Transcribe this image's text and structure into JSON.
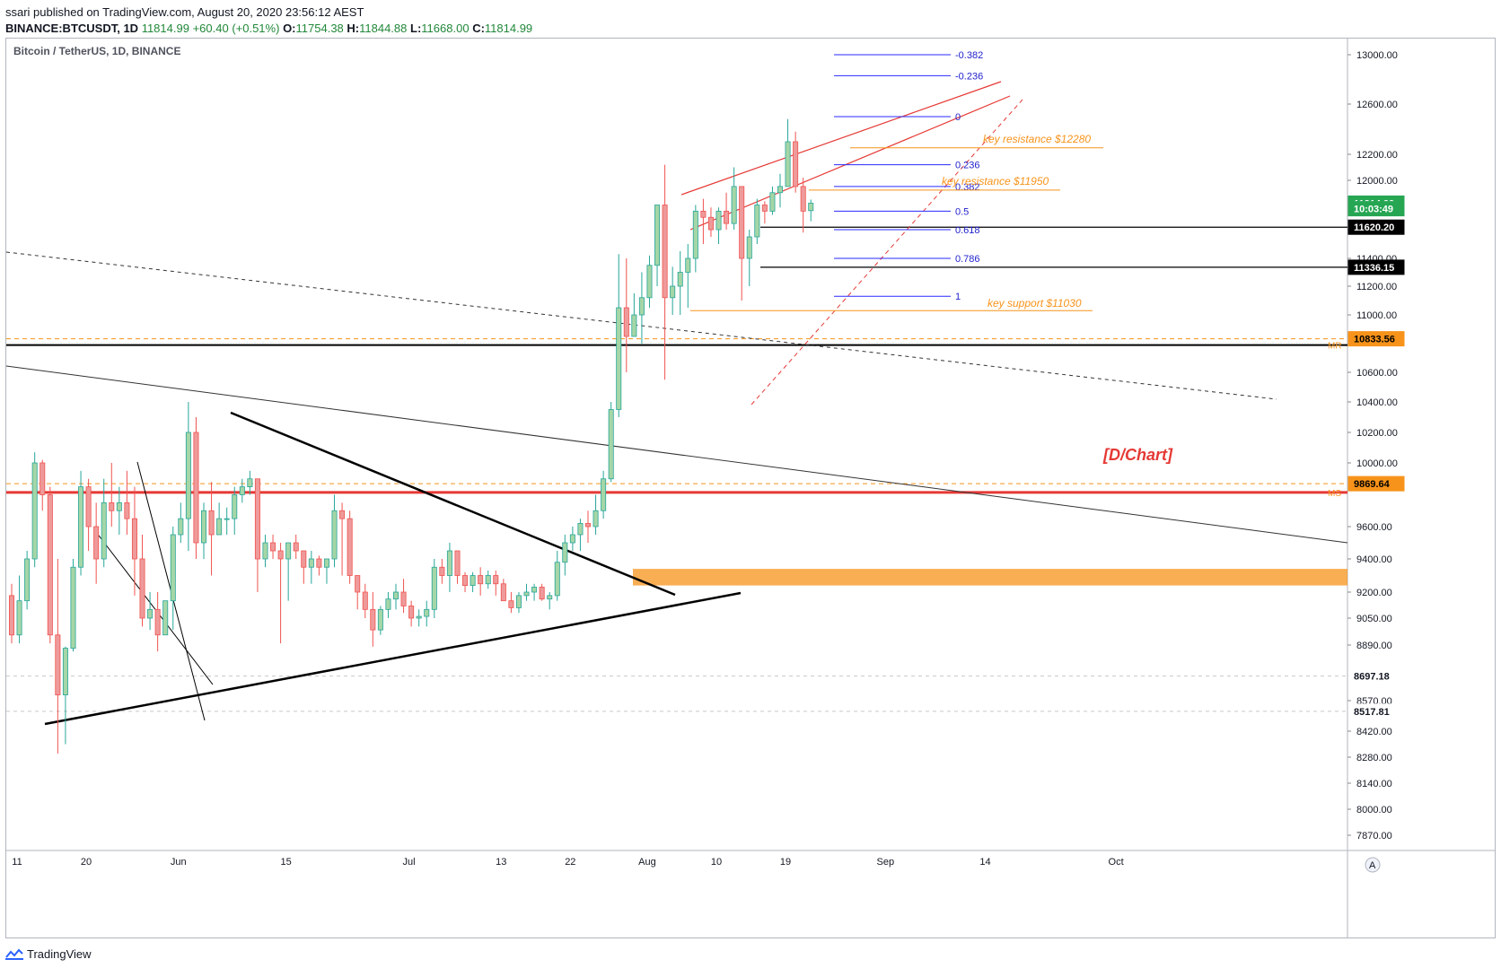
{
  "header": {
    "published_line": "ssari published on TradingView.com, August 20, 2020 23:56:12 AEST",
    "symbol_line": "BINANCE:BTCUSDT, 1D",
    "price": "11814.99",
    "change": "+60.40 (+0.51%)",
    "o_label": "O:",
    "o_value": "11754.38",
    "h_label": "H:",
    "h_value": "11844.88",
    "l_label": "L:",
    "l_value": "11668.00",
    "c_label": "C:",
    "c_value": "11814.99"
  },
  "footer": {
    "brand": "TradingView",
    "scale_mode": "A"
  },
  "colors": {
    "up": "#a5d6a7",
    "down": "#ef9a9a",
    "up_edge": "#26a69a",
    "down_edge": "#ef5350",
    "annotation": "#f7931a",
    "fib": "#2a2aff",
    "channel": "#e53935"
  },
  "chart_data": {
    "type": "candlestick",
    "title": "Bitcoin / TetherUS, 1D, BINANCE",
    "watermark": "[D/Chart]",
    "y_ticks": [
      13000,
      12600,
      12200,
      12000,
      11600,
      11400,
      11200,
      11000,
      10600,
      10400,
      10200,
      10000,
      9600,
      9400,
      9200,
      9050,
      8890,
      8700,
      8570,
      8420,
      8280,
      8140,
      8000,
      7870
    ],
    "y_tick_labels": [
      "13000.00",
      "12600.00",
      "12200.00",
      "12000.00",
      "11600.00",
      "11400.00",
      "11200.00",
      "11000.00",
      "10600.00",
      "10400.00",
      "10200.00",
      "10000.00",
      "9600.00",
      "9400.00",
      "9200.00",
      "9050.00",
      "8890.00",
      "8700.00",
      "8570.00",
      "8420.00",
      "8280.00",
      "8140.00",
      "8000.00",
      "7870.00"
    ],
    "x_tick_labels": [
      "11",
      "20",
      "Jun",
      "15",
      "Jul",
      "13",
      "22",
      "Aug",
      "10",
      "19",
      "Sep",
      "14",
      "Oct"
    ],
    "x_tick_bars": [
      0,
      9,
      21,
      35,
      51,
      63,
      72,
      82,
      91,
      100,
      113,
      126,
      143
    ],
    "price_labels": [
      {
        "value": 11814.99,
        "text": "11814.99",
        "bg": "#26a653",
        "fg": "#ffffff"
      },
      {
        "value": 11770,
        "text": "10:03:49",
        "bg": "#26a653",
        "fg": "#ffffff"
      },
      {
        "value": 11620.2,
        "text": "11620.20",
        "bg": "#000000",
        "fg": "#ffffff"
      },
      {
        "value": 11336.15,
        "text": "11336.15",
        "bg": "#000000",
        "fg": "#ffffff"
      },
      {
        "value": 10833.56,
        "text": "10833.56",
        "bg": "#f7931a",
        "fg": "#000000"
      },
      {
        "value": 9869.64,
        "text": "9869.64",
        "bg": "#f7931a",
        "fg": "#000000"
      },
      {
        "value": 8697.18,
        "text": "8697.18",
        "bg": "#ffffff",
        "fg": "#131722"
      },
      {
        "value": 8517.81,
        "text": "8517.81",
        "bg": "#ffffff",
        "fg": "#131722"
      }
    ],
    "side_tags": [
      {
        "value": 10790,
        "text": "MR"
      },
      {
        "value": 9815,
        "text": "MS"
      }
    ],
    "fib_levels": [
      {
        "ratio": "-0.382",
        "value": 13000
      },
      {
        "ratio": "-0.236",
        "value": 12830
      },
      {
        "ratio": "0",
        "value": 12500
      },
      {
        "ratio": "0.236",
        "value": 12120
      },
      {
        "ratio": "0.382",
        "value": 11950
      },
      {
        "ratio": "0.5",
        "value": 11750
      },
      {
        "ratio": "0.618",
        "value": 11600
      },
      {
        "ratio": "0.786",
        "value": 11400
      },
      {
        "ratio": "1",
        "value": 11130
      }
    ],
    "annotations": [
      {
        "text": "key resistance $12280",
        "value": 12280
      },
      {
        "text": "key resistance $11950",
        "value": 11950
      },
      {
        "text": "key support $11030",
        "value": 11030
      }
    ],
    "demand_zone": [
      9240,
      9340
    ],
    "horizontal_lines": [
      {
        "value": 11620.2,
        "style": "solid-black"
      },
      {
        "value": 11336.15,
        "style": "solid-black"
      },
      {
        "value": 10790,
        "style": "solid-black"
      },
      {
        "value": 10833.56,
        "style": "dashed-orange"
      },
      {
        "value": 9815,
        "style": "solid-red"
      },
      {
        "value": 9869.64,
        "style": "dashed-orange"
      },
      {
        "value": 8697.18,
        "style": "dashed-grey"
      },
      {
        "value": 8517.81,
        "style": "dashed-grey"
      }
    ],
    "candles": [
      [
        9180,
        9250,
        8900,
        8950
      ],
      [
        8950,
        9300,
        8900,
        9150
      ],
      [
        9150,
        9450,
        9100,
        9400
      ],
      [
        9400,
        10070,
        9350,
        10000
      ],
      [
        10000,
        10020,
        9700,
        9800
      ],
      [
        9800,
        9850,
        8900,
        8950
      ],
      [
        8950,
        9400,
        8300,
        8600
      ],
      [
        8600,
        8880,
        8350,
        8870
      ],
      [
        8870,
        9400,
        8850,
        9350
      ],
      [
        9350,
        9950,
        9300,
        9850
      ],
      [
        9850,
        9900,
        9450,
        9600
      ],
      [
        9600,
        9750,
        9250,
        9400
      ],
      [
        9400,
        9900,
        9350,
        9750
      ],
      [
        9750,
        10000,
        9600,
        9700
      ],
      [
        9700,
        9850,
        9550,
        9750
      ],
      [
        9750,
        9950,
        9550,
        9650
      ],
      [
        9650,
        9850,
        9180,
        9400
      ],
      [
        9400,
        9550,
        9000,
        9050
      ],
      [
        9050,
        9200,
        8980,
        9100
      ],
      [
        9100,
        9200,
        8850,
        8950
      ],
      [
        8950,
        9150,
        8950,
        9150
      ],
      [
        9150,
        9600,
        8980,
        9550
      ],
      [
        9550,
        9750,
        9500,
        9650
      ],
      [
        9650,
        10400,
        9450,
        10200
      ],
      [
        10200,
        10300,
        9400,
        9500
      ],
      [
        9500,
        9750,
        9400,
        9700
      ],
      [
        9700,
        9880,
        9300,
        9550
      ],
      [
        9550,
        9750,
        9550,
        9650
      ],
      [
        9650,
        9720,
        9550,
        9650
      ],
      [
        9650,
        9850,
        9550,
        9800
      ],
      [
        9800,
        9900,
        9750,
        9850
      ],
      [
        9850,
        9950,
        9800,
        9900
      ],
      [
        9900,
        9900,
        9200,
        9400
      ],
      [
        9400,
        9550,
        9350,
        9500
      ],
      [
        9500,
        9550,
        9400,
        9450
      ],
      [
        9450,
        9500,
        8900,
        9400
      ],
      [
        9400,
        9500,
        9150,
        9500
      ],
      [
        9500,
        9550,
        9400,
        9450
      ],
      [
        9450,
        9450,
        9250,
        9350
      ],
      [
        9350,
        9450,
        9250,
        9400
      ],
      [
        9400,
        9420,
        9300,
        9350
      ],
      [
        9350,
        9400,
        9250,
        9400
      ],
      [
        9400,
        9800,
        9350,
        9700
      ],
      [
        9700,
        9750,
        9300,
        9650
      ],
      [
        9650,
        9700,
        9250,
        9300
      ],
      [
        9300,
        9300,
        9100,
        9200
      ],
      [
        9200,
        9250,
        9050,
        9100
      ],
      [
        9100,
        9200,
        8880,
        8980
      ],
      [
        8980,
        9120,
        8950,
        9100
      ],
      [
        9100,
        9200,
        9050,
        9160
      ],
      [
        9160,
        9250,
        9100,
        9200
      ],
      [
        9200,
        9280,
        9080,
        9120
      ],
      [
        9120,
        9150,
        9000,
        9050
      ],
      [
        9050,
        9100,
        9000,
        9060
      ],
      [
        9060,
        9150,
        9000,
        9100
      ],
      [
        9100,
        9400,
        9050,
        9350
      ],
      [
        9350,
        9400,
        9250,
        9300
      ],
      [
        9300,
        9500,
        9200,
        9450
      ],
      [
        9450,
        9450,
        9250,
        9300
      ],
      [
        9300,
        9320,
        9200,
        9240
      ],
      [
        9240,
        9320,
        9200,
        9300
      ],
      [
        9300,
        9350,
        9180,
        9250
      ],
      [
        9250,
        9330,
        9220,
        9300
      ],
      [
        9300,
        9330,
        9180,
        9250
      ],
      [
        9250,
        9280,
        9150,
        9150
      ],
      [
        9150,
        9200,
        9080,
        9110
      ],
      [
        9110,
        9200,
        9080,
        9180
      ],
      [
        9180,
        9250,
        9150,
        9200
      ],
      [
        9200,
        9250,
        9150,
        9230
      ],
      [
        9230,
        9250,
        9150,
        9160
      ],
      [
        9160,
        9200,
        9100,
        9180
      ],
      [
        9180,
        9450,
        9150,
        9380
      ],
      [
        9380,
        9550,
        9300,
        9500
      ],
      [
        9500,
        9600,
        9450,
        9550
      ],
      [
        9550,
        9650,
        9450,
        9620
      ],
      [
        9620,
        9700,
        9500,
        9600
      ],
      [
        9600,
        9800,
        9550,
        9700
      ],
      [
        9700,
        9950,
        9650,
        9900
      ],
      [
        9900,
        10400,
        9880,
        10350
      ],
      [
        10350,
        11430,
        10300,
        11050
      ],
      [
        11050,
        11400,
        10600,
        10850
      ],
      [
        10850,
        11150,
        10850,
        11000
      ],
      [
        11000,
        11300,
        10800,
        11120
      ],
      [
        11120,
        11420,
        11050,
        11350
      ],
      [
        11350,
        11780,
        11200,
        11800
      ],
      [
        11800,
        12120,
        10550,
        11120
      ],
      [
        11120,
        11340,
        11000,
        11200
      ],
      [
        11200,
        11450,
        11000,
        11300
      ],
      [
        11300,
        11500,
        11050,
        11400
      ],
      [
        11400,
        11800,
        11300,
        11750
      ],
      [
        11750,
        11850,
        11500,
        11700
      ],
      [
        11700,
        11780,
        11550,
        11600
      ],
      [
        11600,
        11780,
        11500,
        11750
      ],
      [
        11750,
        11900,
        11600,
        11650
      ],
      [
        11650,
        12100,
        11600,
        11950
      ],
      [
        11950,
        11950,
        11100,
        11400
      ],
      [
        11400,
        11600,
        11200,
        11550
      ],
      [
        11550,
        11850,
        11500,
        11800
      ],
      [
        11800,
        11830,
        11650,
        11750
      ],
      [
        11750,
        11950,
        11720,
        11900
      ],
      [
        11900,
        12050,
        11780,
        11950
      ],
      [
        11950,
        12480,
        11950,
        12300
      ],
      [
        12300,
        12380,
        11900,
        11950
      ],
      [
        11950,
        12020,
        11580,
        11750
      ],
      [
        11754,
        11844,
        11668,
        11815
      ]
    ]
  }
}
